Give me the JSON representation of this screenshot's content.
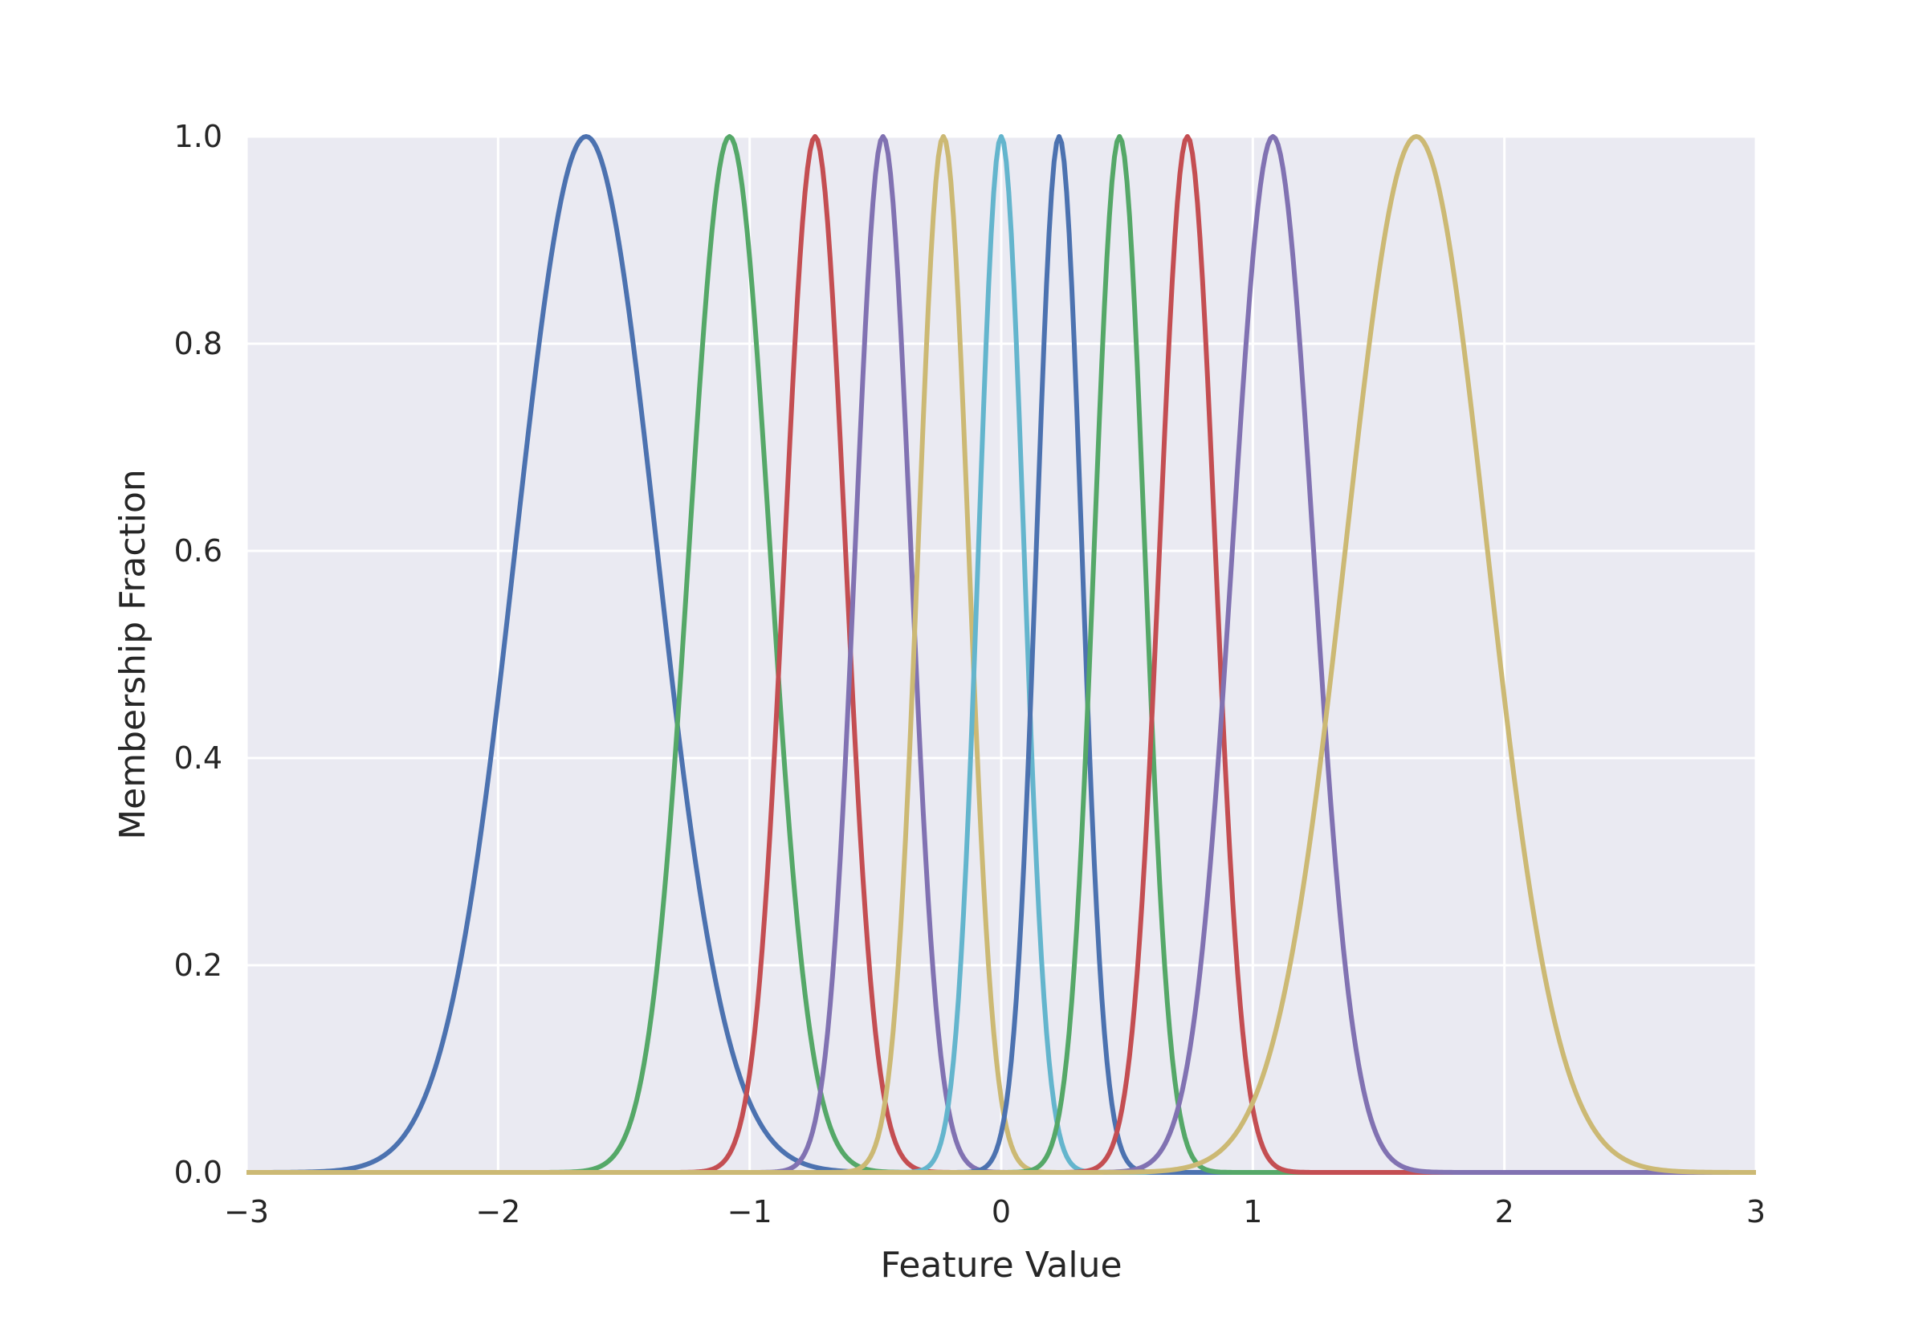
{
  "chart_data": {
    "type": "line",
    "title": "",
    "xlabel": "Feature Value",
    "ylabel": "Membership Fraction",
    "xlim": [
      -3,
      3
    ],
    "ylim": [
      0,
      1
    ],
    "xticks": [
      -3,
      -2,
      -1,
      0,
      1,
      2,
      3
    ],
    "xtick_labels": [
      "−3",
      "−2",
      "−1",
      "0",
      "1",
      "2",
      "3"
    ],
    "yticks": [
      0,
      0.2,
      0.4,
      0.6,
      0.8,
      1.0
    ],
    "ytick_labels": [
      "0.0",
      "0.2",
      "0.4",
      "0.6",
      "0.8",
      "1.0"
    ],
    "grid": true,
    "background": "#eaeaf2",
    "curve_shape": "gaussian",
    "series": [
      {
        "center": -1.65,
        "sigma": 0.28,
        "color": "#4c72b0"
      },
      {
        "center": -1.08,
        "sigma": 0.16,
        "color": "#55a868"
      },
      {
        "center": -0.74,
        "sigma": 0.12,
        "color": "#c44e52"
      },
      {
        "center": -0.47,
        "sigma": 0.11,
        "color": "#8172b2"
      },
      {
        "center": -0.23,
        "sigma": 0.1,
        "color": "#ccb974"
      },
      {
        "center": 0.0,
        "sigma": 0.09,
        "color": "#64b5cd"
      },
      {
        "center": 0.23,
        "sigma": 0.09,
        "color": "#4c72b0"
      },
      {
        "center": 0.47,
        "sigma": 0.1,
        "color": "#55a868"
      },
      {
        "center": 0.74,
        "sigma": 0.11,
        "color": "#c44e52"
      },
      {
        "center": 1.08,
        "sigma": 0.16,
        "color": "#8172b2"
      },
      {
        "center": 1.65,
        "sigma": 0.28,
        "color": "#ccb974"
      }
    ]
  }
}
